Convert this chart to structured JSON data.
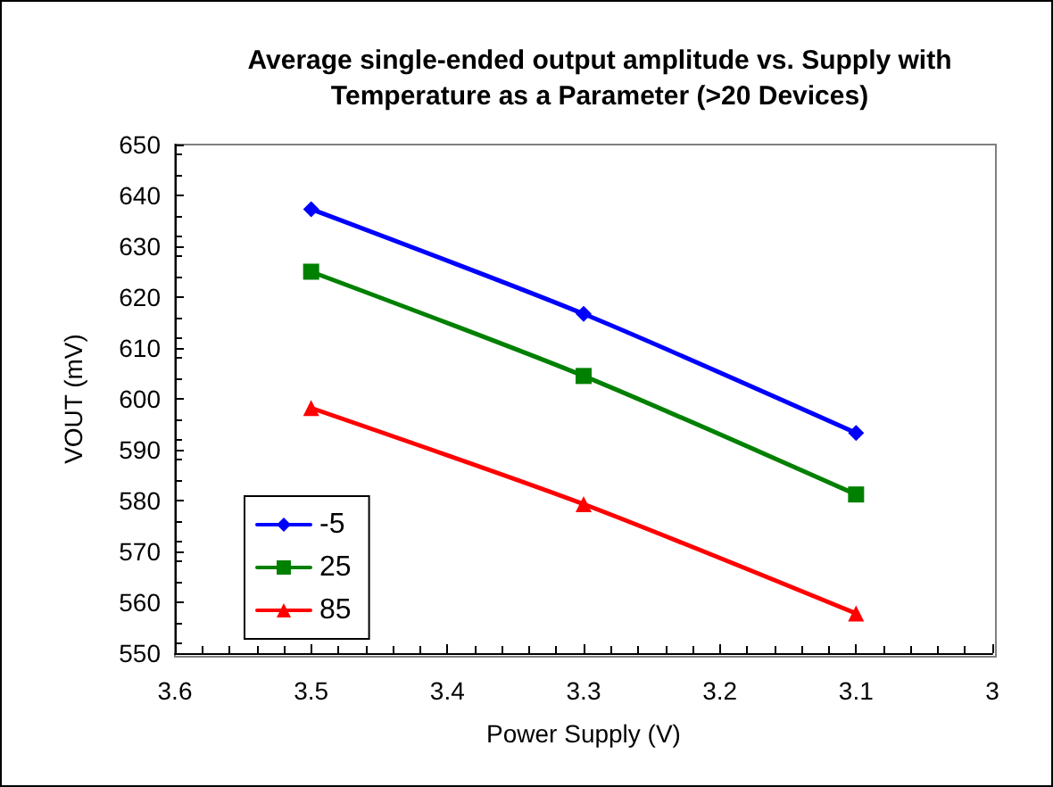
{
  "chart_data": {
    "type": "line",
    "title": "Average single-ended output amplitude vs. Supply with\nTemperature as a Parameter (>20 Devices)",
    "xlabel": "Power Supply (V)",
    "ylabel": "VOUT (mV)",
    "x": [
      3.5,
      3.3,
      3.1
    ],
    "series": [
      {
        "name": "-5",
        "color": "#0000ff",
        "marker": "diamond",
        "values": [
          637.3,
          616.7,
          593.3
        ]
      },
      {
        "name": "25",
        "color": "#008000",
        "marker": "square",
        "values": [
          625,
          604.5,
          581.2
        ]
      },
      {
        "name": "85",
        "color": "#ff0000",
        "marker": "triangle",
        "values": [
          598.2,
          579.3,
          557.8
        ]
      }
    ],
    "xlim": [
      3.6,
      3
    ],
    "xticks": [
      3.6,
      3.5,
      3.4,
      3.3,
      3.2,
      3.1,
      3
    ],
    "ylim": [
      550,
      650
    ],
    "yticks": [
      550,
      560,
      570,
      580,
      590,
      600,
      610,
      620,
      630,
      640,
      650
    ],
    "grid": false,
    "legend": "bottom left",
    "line_style": "solid"
  }
}
